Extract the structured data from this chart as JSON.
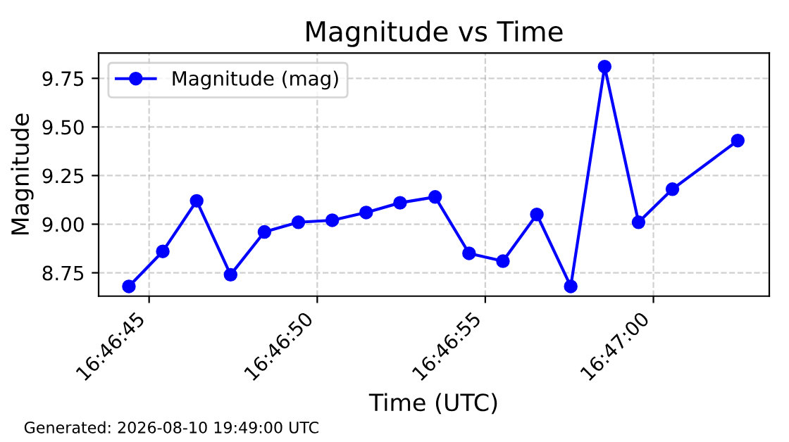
{
  "chart_data": {
    "type": "line",
    "title": "Magnitude vs Time",
    "xlabel": "Time (UTC)",
    "ylabel": "Magnitude",
    "x": [
      16.779,
      16.77928,
      16.77956,
      16.77984,
      16.78012,
      16.7804,
      16.78068,
      16.78096,
      16.78124,
      16.78153,
      16.78181,
      16.78209,
      16.78237,
      16.78265,
      16.78293,
      16.78321,
      16.78349,
      16.78403
    ],
    "series": [
      {
        "name": "Magnitude (mag)",
        "color": "#0000ff",
        "values": [
          8.68,
          8.86,
          9.12,
          8.74,
          8.96,
          9.01,
          9.02,
          9.06,
          9.11,
          9.14,
          8.85,
          8.81,
          9.05,
          8.68,
          9.81,
          9.01,
          9.18,
          9.43
        ]
      }
    ],
    "xlim": [
      16.77875,
      16.78429
    ],
    "xticks": [
      {
        "value": 16.779167,
        "label": "16:46:45"
      },
      {
        "value": 16.780556,
        "label": "16:46:50"
      },
      {
        "value": 16.781944,
        "label": "16:46:55"
      },
      {
        "value": 16.783333,
        "label": "16:47:00"
      }
    ],
    "ylim": [
      8.63,
      9.88
    ],
    "yticks": [
      8.75,
      {
        "value": 9,
        "label": "9.00"
      },
      9.25,
      {
        "value": 9.5,
        "label": "9.50"
      },
      9.75
    ],
    "grid": true,
    "legend": "top left",
    "marker": "circle",
    "line_style": "solid",
    "annotations": [
      "Generated: 2026-08-10 19:49:00 UTC"
    ]
  }
}
